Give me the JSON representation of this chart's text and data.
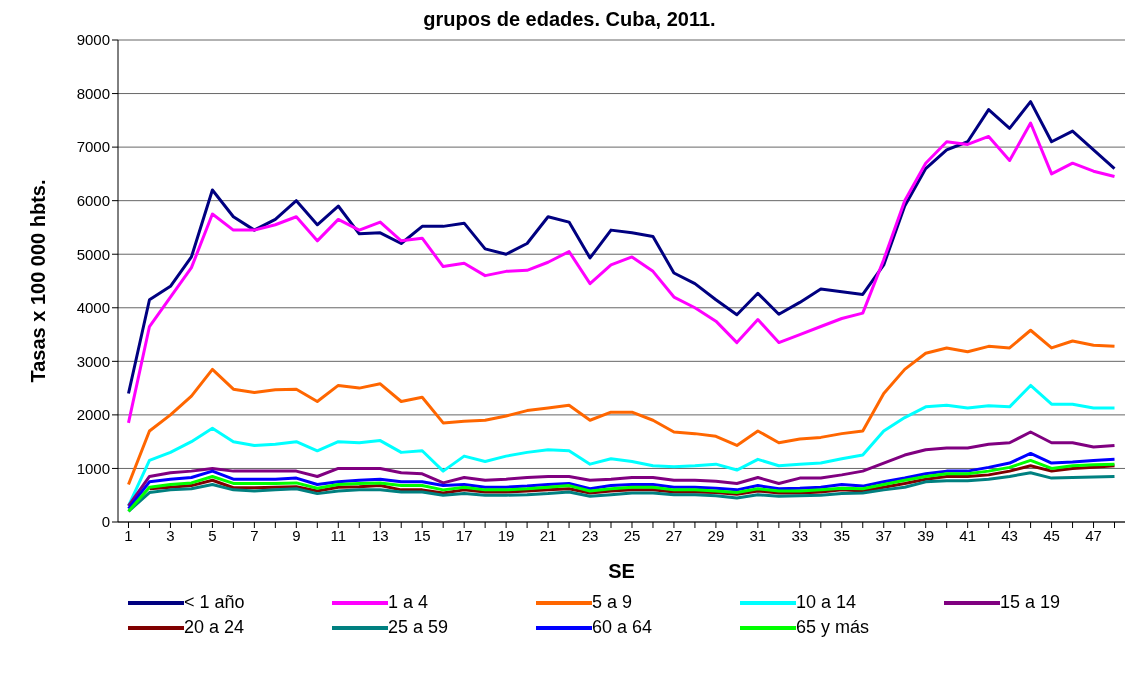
{
  "chart_data": {
    "type": "line",
    "title": "grupos de edades. Cuba, 2011.",
    "xlabel": "SE",
    "ylabel": "Tasas x 100 000 hbts.",
    "x": [
      1,
      2,
      3,
      4,
      5,
      6,
      7,
      8,
      9,
      10,
      11,
      12,
      13,
      14,
      15,
      16,
      17,
      18,
      19,
      20,
      21,
      22,
      23,
      24,
      25,
      26,
      27,
      28,
      29,
      30,
      31,
      32,
      33,
      34,
      35,
      36,
      37,
      38,
      39,
      40,
      41,
      42,
      43,
      44,
      45,
      46,
      47,
      48
    ],
    "xlim": [
      0.5,
      48.5
    ],
    "xticks": [
      1,
      {
        "value": 2,
        "label": null
      },
      3,
      {
        "value": 4,
        "label": null
      },
      5,
      {
        "value": 6,
        "label": null
      },
      7,
      {
        "value": 8,
        "label": null
      },
      9,
      {
        "value": 10,
        "label": null
      },
      11,
      {
        "value": 12,
        "label": null
      },
      13,
      {
        "value": 14,
        "label": null
      },
      15,
      {
        "value": 16,
        "label": null
      },
      17,
      {
        "value": 18,
        "label": null
      },
      19,
      {
        "value": 20,
        "label": null
      },
      21,
      {
        "value": 22,
        "label": null
      },
      23,
      {
        "value": 24,
        "label": null
      },
      25,
      {
        "value": 26,
        "label": null
      },
      27,
      {
        "value": 28,
        "label": null
      },
      29,
      {
        "value": 30,
        "label": null
      },
      31,
      {
        "value": 32,
        "label": null
      },
      33,
      {
        "value": 34,
        "label": null
      },
      35,
      {
        "value": 36,
        "label": null
      },
      37,
      {
        "value": 38,
        "label": null
      },
      39,
      {
        "value": 40,
        "label": null
      },
      41,
      {
        "value": 42,
        "label": null
      },
      43,
      {
        "value": 44,
        "label": null
      },
      45,
      {
        "value": 46,
        "label": null
      },
      47,
      {
        "value": 48,
        "label": null
      }
    ],
    "ylim": [
      0,
      9000
    ],
    "yticks": [
      0,
      1000,
      2000,
      3000,
      4000,
      5000,
      6000,
      7000,
      8000,
      9000
    ],
    "grid": "y",
    "legend": "bottom",
    "marker": "none",
    "line_style": "solid",
    "series": [
      {
        "name": "< 1 año",
        "color": "#000080",
        "values": [
          2400,
          4150,
          4400,
          4950,
          6200,
          5700,
          5450,
          5650,
          6000,
          5550,
          5900,
          5380,
          5400,
          5200,
          5520,
          5520,
          5580,
          5100,
          5000,
          5200,
          5700,
          5600,
          4930,
          5450,
          5400,
          5330,
          4650,
          4450,
          4150,
          3870,
          4270,
          3880,
          4100,
          4350,
          4300,
          4250,
          4800,
          5900,
          6600,
          6950,
          7100,
          7700,
          7350,
          7850,
          7100,
          7300,
          6950,
          6600
        ]
      },
      {
        "name": "1 a 4",
        "color": "#ff00ff",
        "values": [
          1850,
          3650,
          4200,
          4750,
          5750,
          5450,
          5450,
          5550,
          5700,
          5250,
          5650,
          5450,
          5600,
          5250,
          5300,
          4770,
          4830,
          4600,
          4680,
          4700,
          4850,
          5050,
          4450,
          4800,
          4950,
          4680,
          4200,
          4000,
          3750,
          3350,
          3780,
          3350,
          3500,
          3650,
          3800,
          3900,
          4900,
          6000,
          6700,
          7100,
          7050,
          7200,
          6750,
          7450,
          6500,
          6700,
          6550,
          6450
        ]
      },
      {
        "name": "5 a 9",
        "color": "#ff6600",
        "values": [
          700,
          1700,
          2000,
          2350,
          2850,
          2480,
          2420,
          2470,
          2480,
          2250,
          2550,
          2500,
          2580,
          2250,
          2330,
          1850,
          1880,
          1900,
          1980,
          2080,
          2130,
          2180,
          1900,
          2050,
          2050,
          1900,
          1680,
          1650,
          1600,
          1430,
          1700,
          1480,
          1550,
          1580,
          1650,
          1700,
          2400,
          2850,
          3150,
          3250,
          3180,
          3280,
          3250,
          3580,
          3250,
          3380,
          3300,
          3280
        ]
      },
      {
        "name": "10 a 14",
        "color": "#00ffff",
        "values": [
          300,
          1150,
          1300,
          1500,
          1750,
          1500,
          1430,
          1450,
          1500,
          1330,
          1500,
          1480,
          1520,
          1300,
          1330,
          950,
          1230,
          1130,
          1230,
          1300,
          1350,
          1330,
          1080,
          1180,
          1130,
          1050,
          1030,
          1050,
          1080,
          970,
          1170,
          1050,
          1080,
          1100,
          1180,
          1250,
          1700,
          1950,
          2150,
          2180,
          2130,
          2170,
          2150,
          2550,
          2200,
          2200,
          2130,
          2130
        ]
      },
      {
        "name": "15 a 19",
        "color": "#800080",
        "values": [
          300,
          850,
          920,
          950,
          1000,
          950,
          950,
          950,
          950,
          850,
          1000,
          1000,
          1000,
          920,
          900,
          730,
          830,
          780,
          800,
          830,
          850,
          850,
          780,
          800,
          830,
          830,
          780,
          780,
          760,
          720,
          830,
          720,
          820,
          820,
          880,
          950,
          1100,
          1250,
          1350,
          1380,
          1380,
          1450,
          1480,
          1680,
          1480,
          1480,
          1400,
          1430
        ]
      },
      {
        "name": "20 a 24",
        "color": "#800000",
        "values": [
          null,
          620,
          650,
          680,
          780,
          640,
          640,
          650,
          660,
          580,
          650,
          660,
          680,
          600,
          600,
          540,
          600,
          560,
          560,
          580,
          600,
          620,
          540,
          580,
          600,
          600,
          560,
          560,
          550,
          520,
          580,
          540,
          540,
          560,
          600,
          580,
          650,
          720,
          800,
          850,
          850,
          880,
          950,
          1050,
          950,
          1000,
          1020,
          1050
        ]
      },
      {
        "name": "25 a 59",
        "color": "#008080",
        "values": [
          200,
          550,
          600,
          620,
          700,
          600,
          580,
          600,
          620,
          530,
          580,
          600,
          600,
          560,
          560,
          500,
          530,
          500,
          500,
          510,
          530,
          560,
          480,
          510,
          540,
          540,
          510,
          510,
          490,
          450,
          510,
          480,
          490,
          500,
          530,
          540,
          600,
          650,
          750,
          770,
          770,
          800,
          850,
          920,
          820,
          830,
          840,
          850
        ]
      },
      {
        "name": "60 a 64",
        "color": "#0000ff",
        "values": [
          250,
          750,
          800,
          830,
          950,
          800,
          800,
          800,
          820,
          700,
          750,
          780,
          800,
          750,
          750,
          680,
          700,
          650,
          650,
          670,
          700,
          720,
          620,
          680,
          700,
          700,
          650,
          650,
          630,
          600,
          680,
          620,
          630,
          650,
          700,
          670,
          750,
          820,
          900,
          950,
          950,
          1020,
          1100,
          1280,
          1100,
          1120,
          1150,
          1170
        ]
      },
      {
        "name": "65 y más",
        "color": "#00ff00",
        "values": [
          200,
          650,
          700,
          730,
          850,
          720,
          720,
          720,
          730,
          630,
          700,
          720,
          730,
          680,
          680,
          600,
          650,
          600,
          600,
          620,
          650,
          680,
          580,
          620,
          650,
          650,
          600,
          600,
          580,
          550,
          620,
          580,
          580,
          600,
          630,
          620,
          700,
          780,
          850,
          900,
          900,
          950,
          1020,
          1150,
          1000,
          1050,
          1070,
          1080
        ]
      }
    ]
  }
}
